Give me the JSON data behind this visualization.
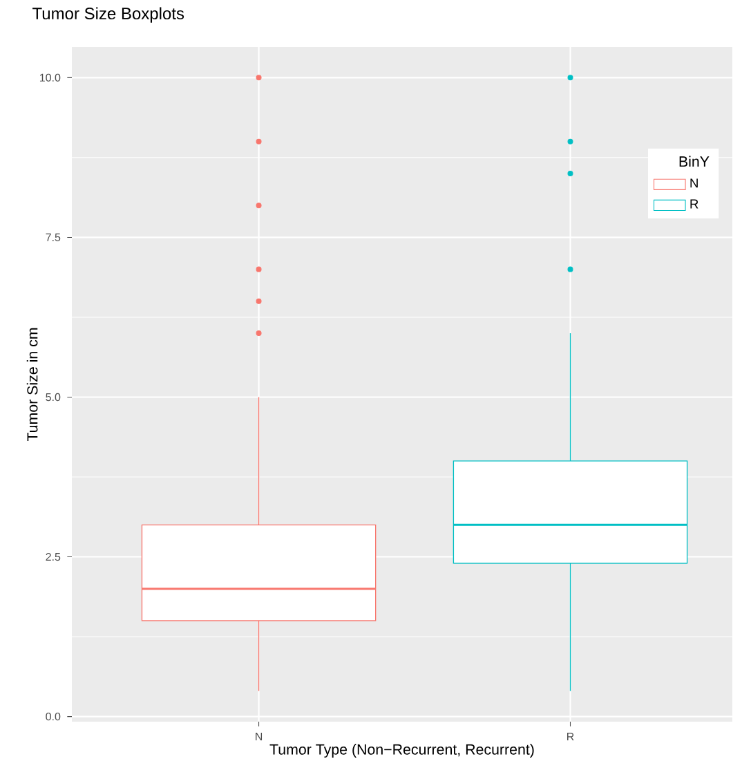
{
  "chart_data": {
    "type": "box",
    "title": "Tumor Size Boxplots",
    "xlabel": "Tumor Type (Non−Recurrent, Recurrent)",
    "ylabel": "Tumor Size in cm",
    "legend_title": "BinY",
    "categories": [
      "N",
      "R"
    ],
    "series": [
      {
        "name": "N",
        "color": "#f8766d",
        "boxes": [
          {
            "low": 0.4,
            "q1": 1.5,
            "median": 2.0,
            "q3": 3.0,
            "high": 5.0,
            "outliers": [
              6,
              6.5,
              7,
              8,
              9,
              10
            ]
          },
          null
        ]
      },
      {
        "name": "R",
        "color": "#00bfc4",
        "boxes": [
          null,
          {
            "low": 0.4,
            "q1": 2.4,
            "median": 3.0,
            "q3": 4.0,
            "high": 6.0,
            "outliers": [
              7,
              8.5,
              9,
              10
            ]
          }
        ]
      }
    ],
    "ylim": [
      -0.08,
      10.48
    ],
    "yticks": [
      {
        "value": 0,
        "label": "0.0"
      },
      {
        "value": 2.5,
        "label": "2.5"
      },
      {
        "value": 5,
        "label": "5.0"
      },
      {
        "value": 7.5,
        "label": "7.5"
      },
      {
        "value": 10,
        "label": "10.0"
      }
    ],
    "grid": true,
    "legend": "top right"
  }
}
